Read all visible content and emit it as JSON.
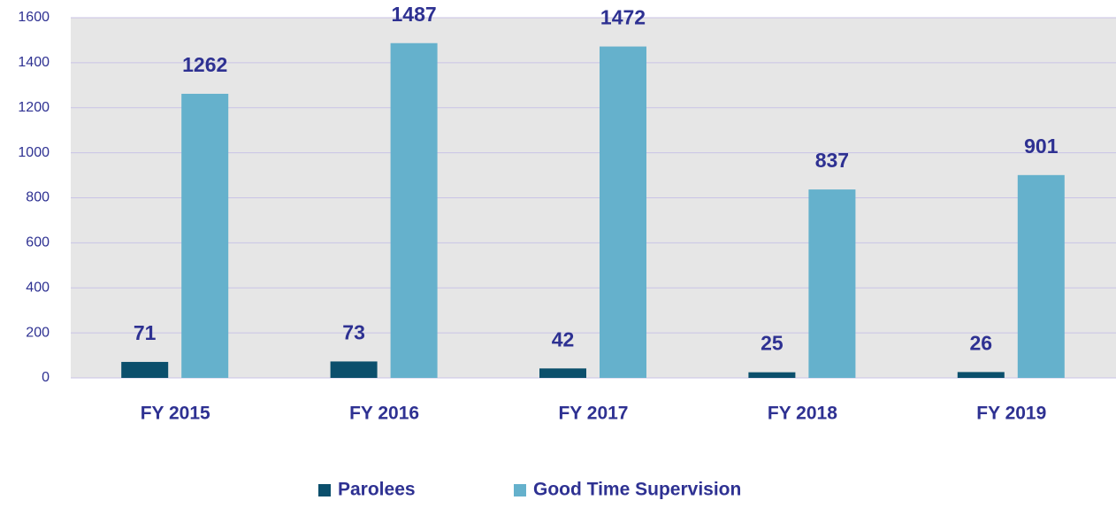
{
  "chart_data": {
    "type": "bar",
    "categories": [
      "FY 2015",
      "FY 2016",
      "FY 2017",
      "FY 2018",
      "FY 2019"
    ],
    "series": [
      {
        "name": "Parolees",
        "color": "#0b4f6c",
        "values": [
          71,
          73,
          42,
          25,
          26
        ]
      },
      {
        "name": "Good Time Supervision",
        "color": "#65b1cc",
        "values": [
          1262,
          1487,
          1472,
          837,
          901
        ]
      }
    ],
    "ylim": [
      0,
      1600
    ],
    "yticks": [
      0,
      200,
      400,
      600,
      800,
      1000,
      1200,
      1400,
      1600
    ],
    "grid": true,
    "legend": "bottom"
  }
}
